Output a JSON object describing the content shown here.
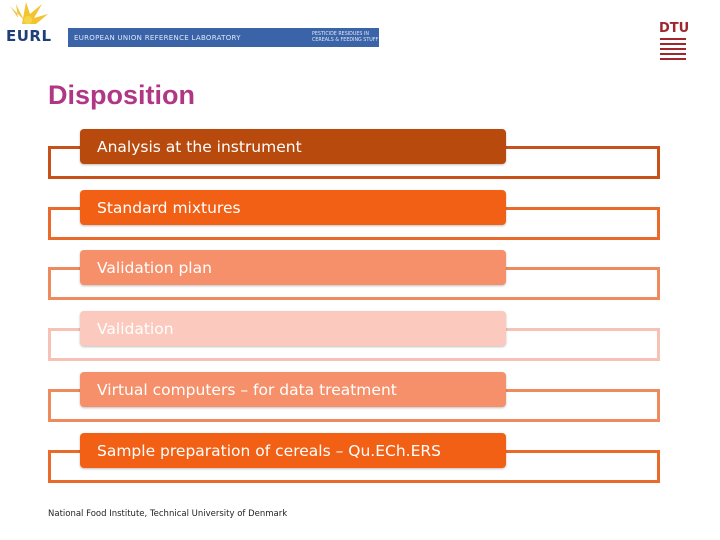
{
  "header": {
    "eurl_label": "EURL",
    "banner_left": "EUROPEAN UNION REFERENCE LABORATORY",
    "banner_right": "PESTICIDE RESIDUES IN\nCEREALS & FEEDING STUFF",
    "dtu_label": "DTU"
  },
  "slide": {
    "title": "Disposition",
    "items": [
      {
        "label": "Analysis at the instrument",
        "fill": "#b74a0c",
        "border": "#c8501a"
      },
      {
        "label": "Standard mixtures",
        "fill": "#f26016",
        "border": "#e96a2a"
      },
      {
        "label": "Validation plan",
        "fill": "#f5906a",
        "border": "#ef8a5e"
      },
      {
        "label": "Validation",
        "fill": "#fbc9bd",
        "border": "#f5c2b5"
      },
      {
        "label": "Virtual computers – for data treatment",
        "fill": "#f5906a",
        "border": "#ef8a5e"
      },
      {
        "label": "Sample preparation of cereals – Qu.ECh.ERS",
        "fill": "#f26016",
        "border": "#e96a2a"
      }
    ]
  },
  "footer": {
    "text": "National Food Institute, Technical University of Denmark"
  },
  "colors": {
    "title": "#b03785",
    "banner": "#3a63a8",
    "dtu_red": "#a0262e"
  }
}
